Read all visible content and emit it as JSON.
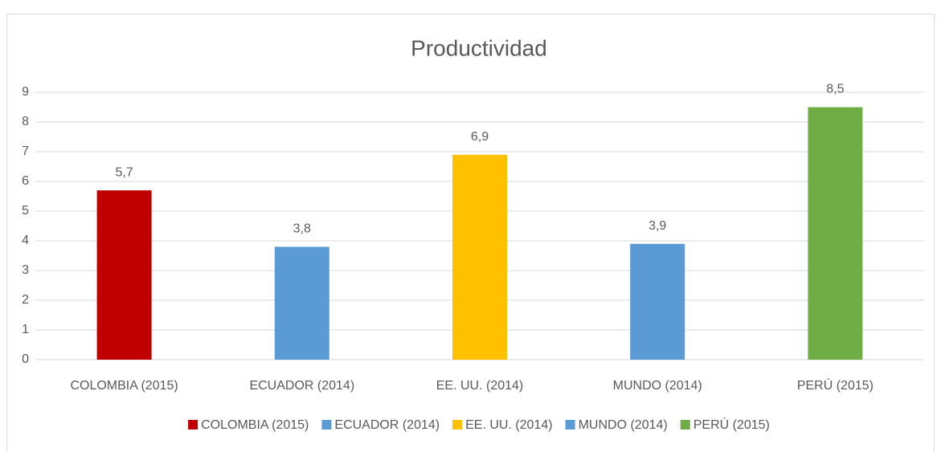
{
  "chart_data": {
    "type": "bar",
    "title": "Productividad",
    "categories": [
      "COLOMBIA (2015)",
      "ECUADOR (2014)",
      "EE. UU. (2014)",
      "MUNDO (2014)",
      "PERÚ (2015)"
    ],
    "values": [
      5.7,
      3.8,
      6.9,
      3.9,
      8.5
    ],
    "value_labels": [
      "5,7",
      "3,8",
      "6,9",
      "3,9",
      "8,5"
    ],
    "colors": [
      "#c00000",
      "#5b9bd5",
      "#ffc000",
      "#5b9bd5",
      "#70ad47"
    ],
    "ylim": [
      0,
      9
    ],
    "yticks": [
      0,
      1,
      2,
      3,
      4,
      5,
      6,
      7,
      8,
      9
    ],
    "grid": true,
    "legend": "bottom"
  }
}
